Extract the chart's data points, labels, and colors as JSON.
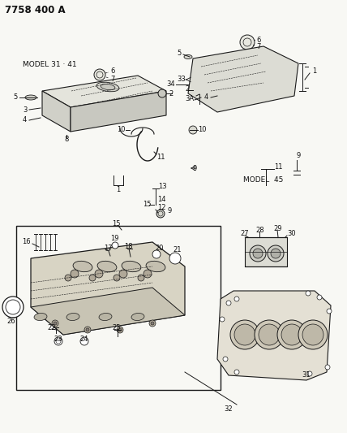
{
  "title": "7758 400 A",
  "background_color": "#f8f8f4",
  "line_color": "#1a1a1a",
  "text_color": "#111111",
  "fig_width": 4.28,
  "fig_height": 5.33,
  "dpi": 100,
  "model_31_41_label": "MODEL 31 · 41",
  "model_45_label": "MODEL 45"
}
